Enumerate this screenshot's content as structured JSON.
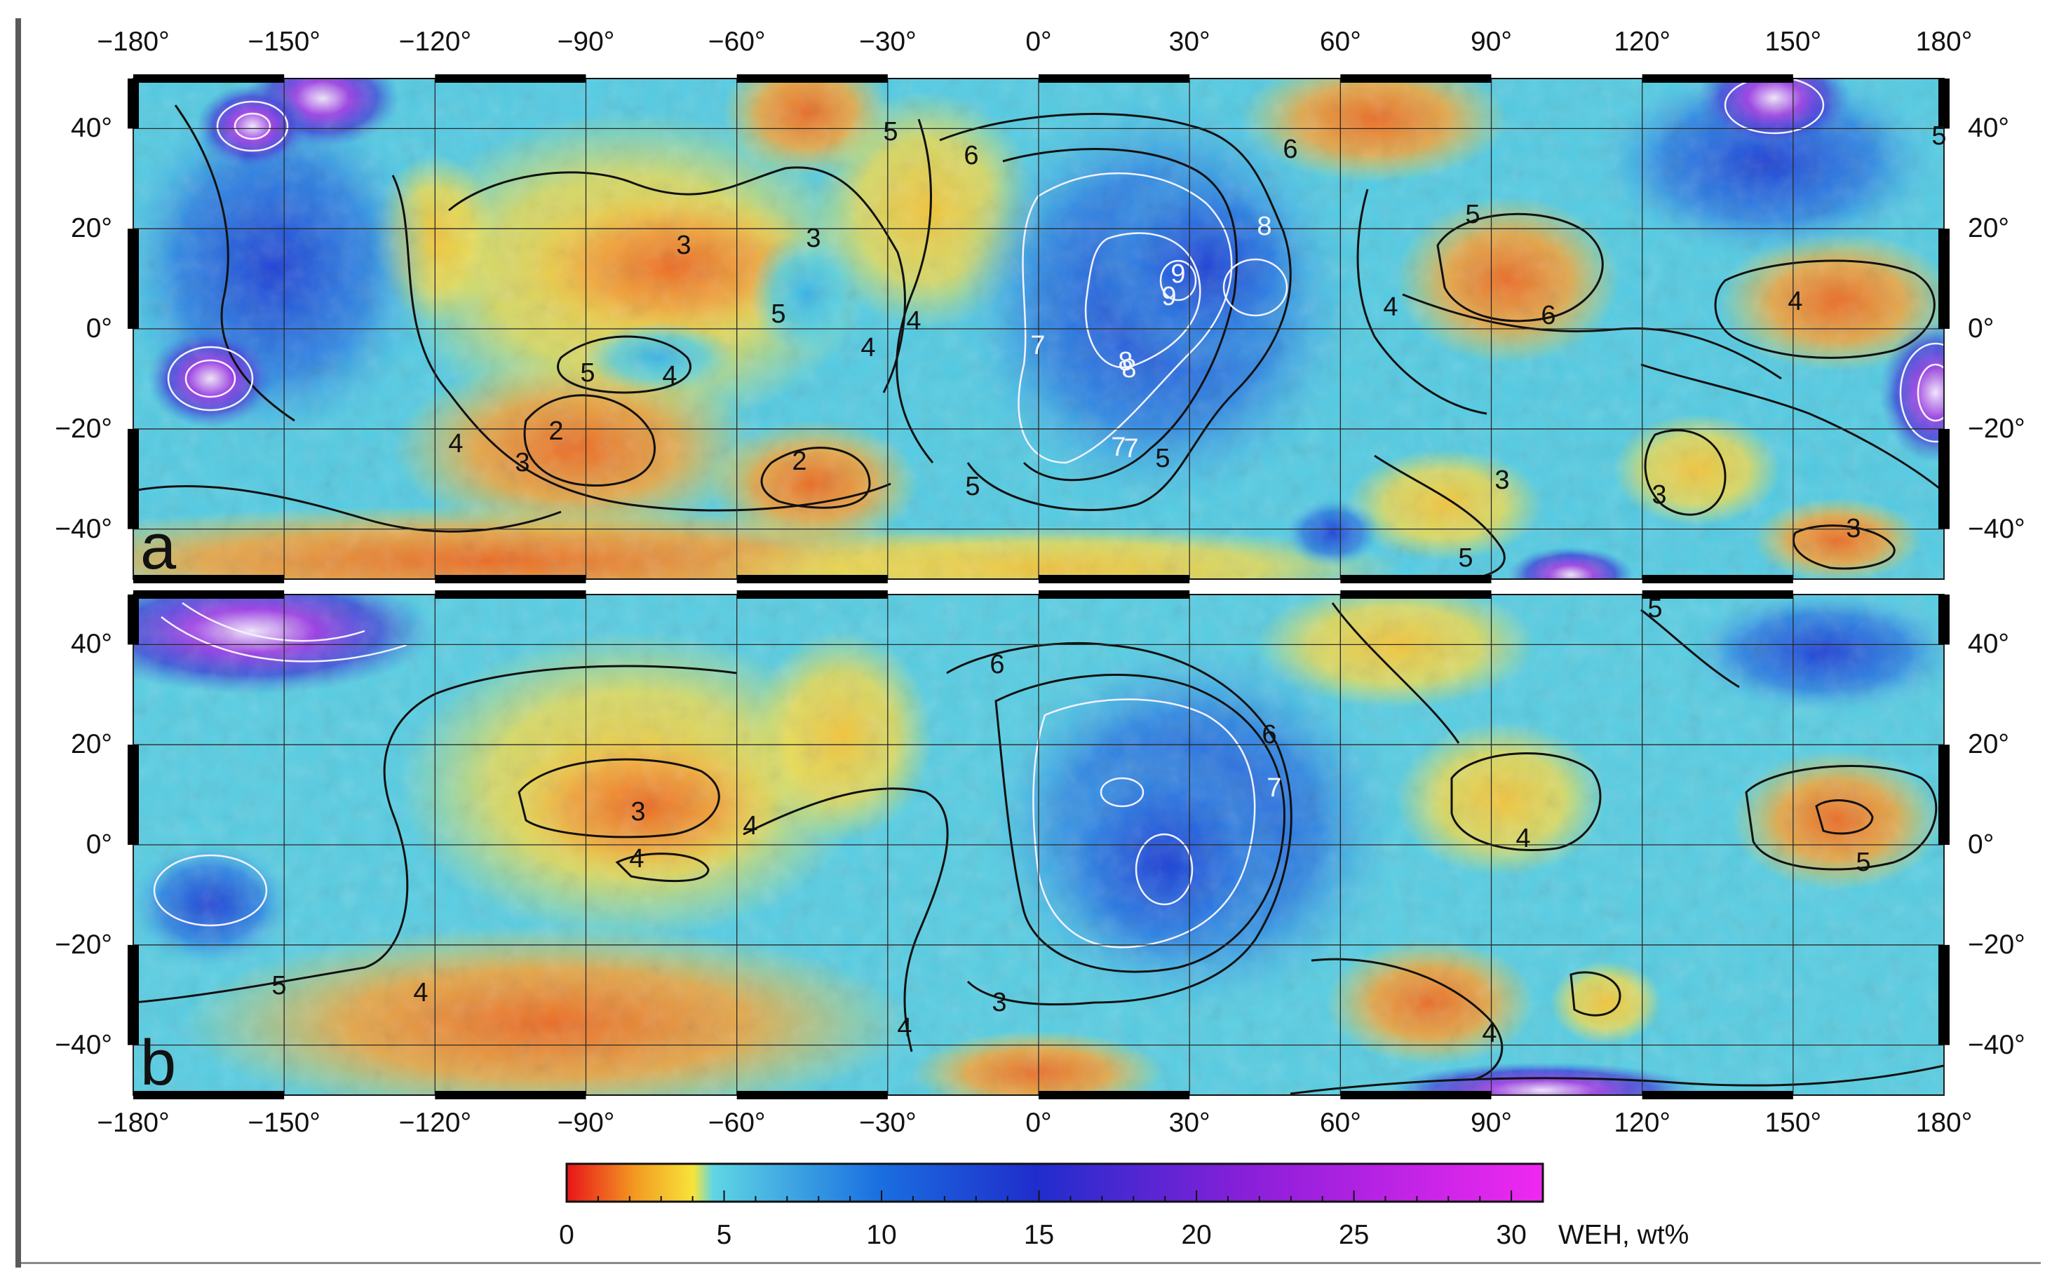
{
  "figure": {
    "panels": [
      {
        "letter": "a"
      },
      {
        "letter": "b"
      }
    ],
    "lon_ticks": [
      "−180°",
      "−150°",
      "−120°",
      "−90°",
      "−60°",
      "−30°",
      "0°",
      "30°",
      "60°",
      "90°",
      "120°",
      "150°",
      "180°"
    ],
    "lat_ticks": [
      "40°",
      "20°",
      "0°",
      "−20°",
      "−40°"
    ],
    "contour_labels_a": [
      "5",
      "6",
      "5",
      "3",
      "3",
      "5",
      "4",
      "4",
      "5",
      "4",
      "2",
      "3",
      "4",
      "2",
      "6",
      "7",
      "8",
      "9",
      "8",
      "9",
      "7",
      "8",
      "7",
      "5",
      "5",
      "5",
      "4",
      "6",
      "3",
      "4",
      "3",
      "3",
      "5"
    ],
    "contour_labels_b": [
      "6",
      "7",
      "6",
      "3",
      "4",
      "4",
      "5",
      "4",
      "3",
      "4",
      "4",
      "5",
      "5",
      "4"
    ],
    "colorbar": {
      "title": "WEH, wt%",
      "ticks": [
        "0",
        "5",
        "10",
        "15",
        "20",
        "25",
        "30"
      ],
      "range": [
        0,
        31
      ],
      "stops": [
        "#e8141a",
        "#f39a22",
        "#f7e43a",
        "#5fd6e4",
        "#1a6fe0",
        "#1f2dcc",
        "#8a1fd9",
        "#f028f0"
      ]
    }
  }
}
